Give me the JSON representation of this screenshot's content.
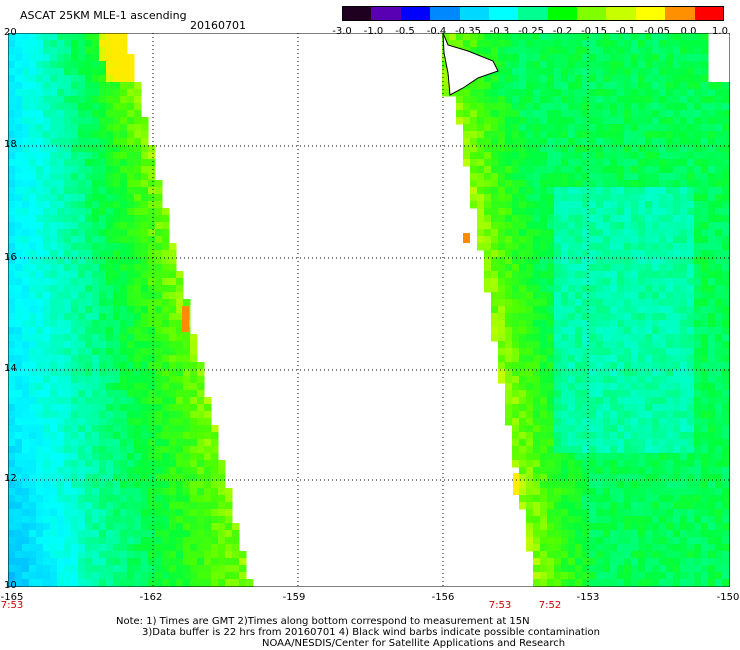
{
  "header": {
    "title": "ASCAT 25KM MLE-1 ascending",
    "date": "20160701"
  },
  "colorbar": {
    "labels": [
      "-3.0",
      "-1.0",
      "-0.5",
      "-0.4",
      "-0.35",
      "-0.3",
      "-0.25",
      "-0.2",
      "-0.15",
      "-0.1",
      "-0.05",
      "0.0",
      "1.0"
    ],
    "colors": [
      "#200020",
      "#5a00b4",
      "#0000ff",
      "#0088ff",
      "#00d8ff",
      "#00ffff",
      "#00ff90",
      "#00ff00",
      "#80ff00",
      "#c8ff00",
      "#ffff00",
      "#ff9000",
      "#ff0000"
    ]
  },
  "axes": {
    "y_labels": [
      "20",
      "18",
      "16",
      "14",
      "12",
      "10"
    ],
    "x_labels": [
      "-165",
      "-162",
      "-159",
      "-156",
      "-153",
      "-150"
    ]
  },
  "times": {
    "left_start": "7:53",
    "right_start": "7:53",
    "right_end": "7:52"
  },
  "footer": {
    "line1": "Note: 1) Times are GMT 2)Times along bottom correspond to measurement at 15N",
    "line2": "3)Data buffer is 22 hrs from 20160701 4) Black wind barbs indicate possible contamination",
    "line3": "NOAA/NESDIS/Center for Satellite Applications and Research"
  },
  "colors": {
    "coastline": "#000000",
    "grid": "#000000",
    "background": "#ffffff"
  }
}
